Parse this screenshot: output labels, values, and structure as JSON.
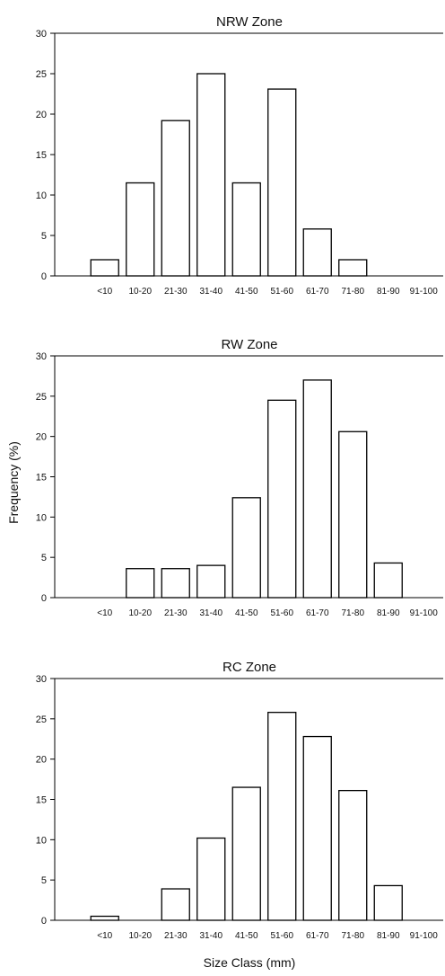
{
  "figure": {
    "ylabel": "Frequency (%)",
    "xlabel": "Size Class (mm)"
  },
  "chart_data": [
    {
      "type": "bar",
      "title": "NRW Zone",
      "categories": [
        "<10",
        "10-20",
        "21-30",
        "31-40",
        "41-50",
        "51-60",
        "61-70",
        "71-80",
        "81-90",
        "91-100"
      ],
      "values": [
        2,
        11.5,
        19.2,
        25,
        11.5,
        23.1,
        5.8,
        2,
        0,
        0
      ],
      "ylim": [
        0,
        30
      ],
      "yticks": [
        0,
        5,
        10,
        15,
        20,
        25,
        30
      ],
      "grid": false,
      "bar_fill": "#ffffff",
      "bar_stroke": "#000000"
    },
    {
      "type": "bar",
      "title": "RW Zone",
      "categories": [
        "<10",
        "10-20",
        "21-30",
        "31-40",
        "41-50",
        "51-60",
        "61-70",
        "71-80",
        "81-90",
        "91-100"
      ],
      "values": [
        0,
        3.6,
        3.6,
        4,
        12.4,
        24.5,
        27,
        20.6,
        4.3,
        0
      ],
      "ylim": [
        0,
        30
      ],
      "yticks": [
        0,
        5,
        10,
        15,
        20,
        25,
        30
      ],
      "grid": false,
      "bar_fill": "#ffffff",
      "bar_stroke": "#000000"
    },
    {
      "type": "bar",
      "title": "RC Zone",
      "categories": [
        "<10",
        "10-20",
        "21-30",
        "31-40",
        "41-50",
        "51-60",
        "61-70",
        "71-80",
        "81-90",
        "91-100"
      ],
      "values": [
        0.5,
        0,
        3.9,
        10.2,
        16.5,
        25.8,
        22.8,
        16.1,
        4.3,
        0
      ],
      "ylim": [
        0,
        30
      ],
      "yticks": [
        0,
        5,
        10,
        15,
        20,
        25,
        30
      ],
      "grid": false,
      "bar_fill": "#ffffff",
      "bar_stroke": "#000000"
    }
  ]
}
